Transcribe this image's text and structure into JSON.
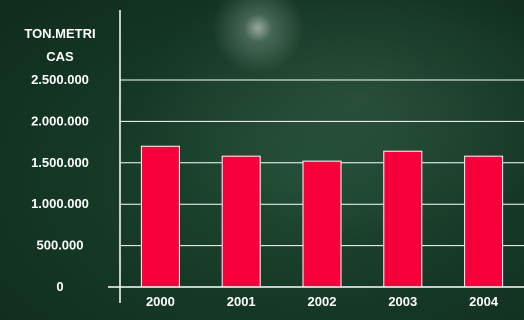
{
  "chart_data": {
    "type": "bar",
    "ylabel_lines": [
      "TON.METRI",
      "CAS"
    ],
    "categories": [
      "2000",
      "2001",
      "2002",
      "2003",
      "2004"
    ],
    "values": [
      1700000,
      1580000,
      1520000,
      1640000,
      1580000
    ],
    "ylim": [
      0,
      2500000
    ],
    "yticks": [
      {
        "value": 0,
        "label": "0"
      },
      {
        "value": 500000,
        "label": "500.000"
      },
      {
        "value": 1000000,
        "label": "1.000.000"
      },
      {
        "value": 1500000,
        "label": "1.500.000"
      },
      {
        "value": 2000000,
        "label": "2.000.000"
      },
      {
        "value": 2500000,
        "label": "2.500.000"
      }
    ],
    "grid": true,
    "legend": "none",
    "colors": {
      "bar": "#f5003a",
      "bar_edge": "#ffffff",
      "grid": "#ffffff",
      "text": "#ffffff"
    }
  }
}
